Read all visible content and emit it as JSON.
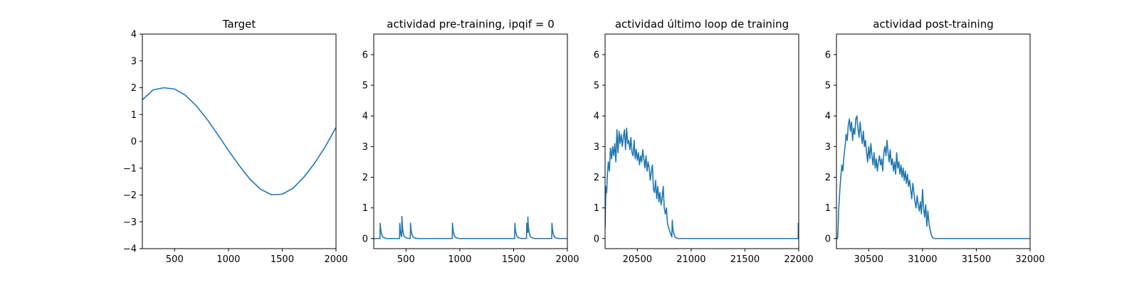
{
  "figure": {
    "background": "#ffffff",
    "line_color": "#1f77b4"
  },
  "chart_data": [
    {
      "type": "line",
      "title": "Target",
      "xlabel": "",
      "ylabel": "",
      "xlim": [
        200,
        2000
      ],
      "ylim": [
        -4,
        4
      ],
      "xticks": [
        500,
        1000,
        1500,
        2000
      ],
      "yticks": [
        -4,
        -3,
        -2,
        -1,
        0,
        1,
        2,
        3,
        4
      ],
      "ytick_labels": [
        "−4",
        "−3",
        "−2",
        "−1",
        "0",
        "1",
        "2",
        "3",
        "4"
      ],
      "grid": false,
      "series": [
        {
          "x": [
            200,
            300,
            400,
            500,
            600,
            700,
            800,
            900,
            1000,
            1100,
            1200,
            1300,
            1400,
            1500,
            1600,
            1700,
            1800,
            1900,
            2000
          ],
          "values": [
            1.55,
            1.92,
            2.0,
            1.95,
            1.72,
            1.33,
            0.83,
            0.26,
            -0.34,
            -0.9,
            -1.41,
            -1.79,
            -1.99,
            -1.97,
            -1.75,
            -1.34,
            -0.82,
            -0.2,
            0.52
          ]
        }
      ]
    },
    {
      "type": "line",
      "title": "actividad pre-training, ipqif = 0",
      "xlabel": "",
      "ylabel": "",
      "xlim": [
        200,
        2000
      ],
      "ylim": [
        -0.33,
        6.67
      ],
      "xticks": [
        500,
        1000,
        1500,
        2000
      ],
      "yticks": [
        0,
        1,
        2,
        3,
        4,
        5,
        6
      ],
      "ytick_labels": [
        "0",
        "1",
        "2",
        "3",
        "4",
        "5",
        "6"
      ],
      "grid": false,
      "series": [
        {
          "x": [
            200,
            258,
            260,
            263,
            268,
            275,
            285,
            300,
            320,
            440,
            442,
            446,
            450,
            455,
            460,
            462,
            466,
            472,
            480,
            492,
            510,
            530,
            540,
            542,
            546,
            552,
            560,
            572,
            590,
            610,
            930,
            932,
            936,
            942,
            950,
            962,
            980,
            1000,
            1510,
            1512,
            1516,
            1522,
            1530,
            1542,
            1560,
            1580,
            1620,
            1622,
            1626,
            1632,
            1633,
            1636,
            1642,
            1650,
            1662,
            1680,
            1700,
            1855,
            1857,
            1861,
            1867,
            1875,
            1887,
            1905,
            1925,
            2000
          ],
          "values": [
            0,
            0,
            0.5,
            0.36,
            0.22,
            0.12,
            0.05,
            0.02,
            0,
            0,
            0.5,
            0.3,
            0.18,
            0.1,
            0.06,
            0.72,
            0.42,
            0.22,
            0.1,
            0.04,
            0.01,
            0,
            0,
            0.5,
            0.32,
            0.18,
            0.09,
            0.03,
            0.01,
            0,
            0,
            0.5,
            0.32,
            0.18,
            0.09,
            0.03,
            0.01,
            0,
            0,
            0.5,
            0.32,
            0.18,
            0.09,
            0.03,
            0.01,
            0,
            0,
            0.5,
            0.3,
            0.2,
            0.7,
            0.45,
            0.25,
            0.12,
            0.04,
            0.01,
            0,
            0,
            0.5,
            0.32,
            0.18,
            0.09,
            0.03,
            0.01,
            0,
            0
          ]
        }
      ]
    },
    {
      "type": "line",
      "title": "actividad último loop de training",
      "xlabel": "",
      "ylabel": "",
      "xlim": [
        20200,
        22000
      ],
      "ylim": [
        -0.33,
        6.67
      ],
      "xticks": [
        20500,
        21000,
        21500,
        22000
      ],
      "yticks": [
        0,
        1,
        2,
        3,
        4,
        5,
        6
      ],
      "ytick_labels": [
        "0",
        "1",
        "2",
        "3",
        "4",
        "5",
        "6"
      ],
      "grid": false,
      "series": [
        {
          "x": [
            20200,
            20205,
            20210,
            20215,
            20220,
            20230,
            20240,
            20250,
            20260,
            20270,
            20280,
            20290,
            20300,
            20310,
            20320,
            20330,
            20340,
            20350,
            20360,
            20370,
            20380,
            20390,
            20400,
            20410,
            20420,
            20430,
            20440,
            20450,
            20460,
            20470,
            20480,
            20490,
            20500,
            20510,
            20520,
            20530,
            20540,
            20550,
            20560,
            20570,
            20580,
            20590,
            20600,
            20610,
            20620,
            20630,
            20640,
            20650,
            20660,
            20670,
            20680,
            20690,
            20700,
            20710,
            20720,
            20730,
            20740,
            20750,
            20760,
            20770,
            20780,
            20790,
            20800,
            20810,
            20820,
            20825,
            20830,
            20840,
            20850,
            20860,
            20880,
            20900,
            21000,
            21500,
            21995,
            21996,
            22000
          ],
          "values": [
            0.35,
            1.3,
            1.7,
            1.5,
            2.0,
            2.5,
            2.2,
            2.95,
            2.6,
            3.0,
            2.7,
            3.1,
            2.5,
            3.55,
            2.8,
            3.5,
            3.1,
            3.4,
            3.0,
            3.3,
            3.55,
            2.9,
            3.6,
            3.1,
            3.2,
            2.9,
            3.3,
            2.8,
            2.7,
            3.2,
            2.6,
            2.9,
            2.55,
            2.8,
            2.4,
            2.7,
            2.5,
            2.9,
            2.6,
            2.3,
            2.7,
            2.2,
            2.5,
            2.3,
            1.9,
            2.2,
            2.4,
            1.6,
            1.5,
            1.9,
            1.3,
            1.7,
            1.2,
            1.5,
            1.1,
            1.3,
            1.7,
            1.0,
            0.8,
            1.0,
            0.5,
            0.35,
            0.25,
            0.15,
            0.05,
            0.6,
            0.3,
            0.15,
            0.05,
            0.02,
            0,
            0,
            0,
            0,
            0,
            0.5,
            0
          ]
        }
      ]
    },
    {
      "type": "line",
      "title": "actividad post-training",
      "xlabel": "",
      "ylabel": "",
      "xlim": [
        30200,
        32000
      ],
      "ylim": [
        -0.33,
        6.67
      ],
      "xticks": [
        30500,
        31000,
        31500,
        32000
      ],
      "yticks": [
        0,
        1,
        2,
        3,
        4,
        5,
        6
      ],
      "ytick_labels": [
        "0",
        "1",
        "2",
        "3",
        "4",
        "5",
        "6"
      ],
      "grid": false,
      "series": [
        {
          "x": [
            30200,
            30210,
            30215,
            30220,
            30230,
            30240,
            30250,
            30260,
            30270,
            30280,
            30290,
            30300,
            30310,
            30320,
            30330,
            30340,
            30350,
            30360,
            30370,
            30380,
            30390,
            30400,
            30410,
            30420,
            30430,
            30440,
            30450,
            30460,
            30470,
            30480,
            30490,
            30500,
            30510,
            30520,
            30530,
            30540,
            30550,
            30560,
            30570,
            30580,
            30590,
            30600,
            30610,
            30620,
            30630,
            30640,
            30650,
            30660,
            30670,
            30680,
            30690,
            30700,
            30710,
            30720,
            30730,
            30740,
            30750,
            30760,
            30770,
            30780,
            30790,
            30800,
            30810,
            30820,
            30830,
            30840,
            30850,
            30860,
            30870,
            30880,
            30890,
            30900,
            30910,
            30920,
            30930,
            30940,
            30950,
            30960,
            30970,
            30980,
            30990,
            31000,
            31010,
            31020,
            31030,
            31040,
            31050,
            31060,
            31070,
            31080,
            31090,
            31100,
            31110,
            31120,
            31140,
            31200,
            31500,
            32000
          ],
          "values": [
            0,
            0,
            0.3,
            0.9,
            1.5,
            2.0,
            2.4,
            2.2,
            2.7,
            3.0,
            3.4,
            3.2,
            3.7,
            3.9,
            3.5,
            3.8,
            3.2,
            3.6,
            3.4,
            3.9,
            4.0,
            3.6,
            3.3,
            3.8,
            3.4,
            3.1,
            3.5,
            3.0,
            3.2,
            2.8,
            2.5,
            3.0,
            2.6,
            3.1,
            2.7,
            2.4,
            2.8,
            2.3,
            2.6,
            2.2,
            2.5,
            2.7,
            2.4,
            2.6,
            2.2,
            2.8,
            3.0,
            2.7,
            3.2,
            2.8,
            2.5,
            2.9,
            2.4,
            2.6,
            2.2,
            2.5,
            2.1,
            2.8,
            2.3,
            2.5,
            2.1,
            2.4,
            2.0,
            2.3,
            1.9,
            2.2,
            1.8,
            2.1,
            1.7,
            1.9,
            1.6,
            1.3,
            1.8,
            1.5,
            1.2,
            1.0,
            1.4,
            1.1,
            0.9,
            1.2,
            0.8,
            1.6,
            1.0,
            0.7,
            1.1,
            0.4,
            0.9,
            0.5,
            0.3,
            0.15,
            0.05,
            0.02,
            0,
            0,
            0,
            0,
            0,
            0
          ]
        }
      ]
    }
  ]
}
